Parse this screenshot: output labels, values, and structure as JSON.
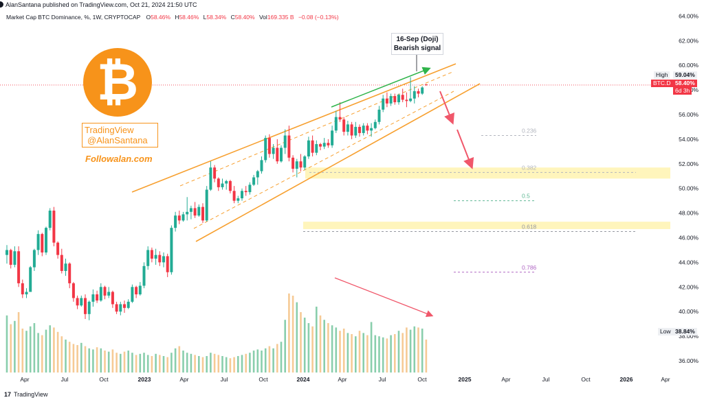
{
  "header": {
    "published": "AlanSantana published on TradingView.com, Oct 21, 2024 21:50 UTC"
  },
  "legend": {
    "symbol": "Market Cap BTC Dominance, %, 1W, CRYPTOCAP",
    "open_label": "O",
    "open": "58.46%",
    "high_label": "H",
    "high": "58.46%",
    "low_label": "L",
    "low": "58.34%",
    "close_label": "C",
    "close": "58.40%",
    "vol_label": "Vol",
    "vol": "169.335 B",
    "change": "−0.08 (−0.13%)"
  },
  "annotations": {
    "tv_line1": "TradingView",
    "tv_line2": "@AlanSantana",
    "followalan": "Followalan.com",
    "callout_line1": "16-Sep (Doji)",
    "callout_line2": "Bearish signal"
  },
  "price_labels": {
    "high_label": "High",
    "high_value": "59.04%",
    "symbol_tag": "BTC.D",
    "current_value": "58.40%",
    "countdown": "6d 3h",
    "low_label": "Low",
    "low_value": "38.84%"
  },
  "footer": {
    "logo": "17",
    "brand": "TradingView"
  },
  "colors": {
    "up": "#22ab94",
    "down": "#f23645",
    "channel": "#f7a030",
    "fib_zone": "#fff3b0",
    "arrow_green": "#2fb44a",
    "arrow_red": "#f0576a"
  },
  "chart_data": {
    "type": "candlestick",
    "title": "Market Cap BTC Dominance, %, 1W, CRYPTOCAP",
    "y_axis": {
      "ticks": [
        "36.00%",
        "38.00%",
        "40.00%",
        "42.00%",
        "44.00%",
        "46.00%",
        "48.00%",
        "50.00%",
        "52.00%",
        "54.00%",
        "56.00%",
        "58.00%",
        "60.00%",
        "62.00%",
        "64.00%"
      ],
      "ylim": [
        35.5,
        64.3
      ]
    },
    "x_axis": {
      "ticks": [
        "Apr",
        "Jul",
        "Oct",
        "2023",
        "Apr",
        "Jul",
        "Oct",
        "2024",
        "Apr",
        "Jul",
        "Oct",
        "2025",
        "Apr",
        "Jul",
        "Oct",
        "2026",
        "Apr"
      ],
      "bold": [
        "2023",
        "2024",
        "2025",
        "2026"
      ]
    },
    "fib_levels": [
      {
        "label": "0.236",
        "value": 54.3
      },
      {
        "label": "0.382",
        "value": 51.3
      },
      {
        "label": "0.5",
        "value": 49.0
      },
      {
        "label": "0.618",
        "value": 46.5
      },
      {
        "label": "0.786",
        "value": 43.2
      }
    ],
    "fib_zones": [
      [
        50.8,
        51.7
      ],
      [
        46.7,
        47.3
      ]
    ],
    "candles": [
      [
        44.6,
        45.4,
        43.9,
        45.0
      ],
      [
        45.0,
        45.1,
        43.5,
        43.8
      ],
      [
        43.8,
        45.3,
        43.6,
        44.9
      ],
      [
        44.9,
        45.3,
        42.0,
        42.3
      ],
      [
        42.3,
        42.6,
        41.1,
        41.4
      ],
      [
        41.4,
        41.9,
        41.1,
        41.6
      ],
      [
        41.6,
        43.7,
        41.6,
        43.6
      ],
      [
        43.6,
        45.1,
        43.3,
        45.0
      ],
      [
        45.0,
        46.6,
        44.6,
        46.3
      ],
      [
        46.3,
        46.4,
        44.5,
        44.8
      ],
      [
        44.8,
        46.9,
        44.6,
        46.8
      ],
      [
        46.8,
        48.4,
        46.6,
        48.2
      ],
      [
        48.2,
        48.5,
        45.3,
        45.6
      ],
      [
        45.6,
        45.7,
        44.3,
        44.6
      ],
      [
        44.6,
        45.1,
        43.1,
        43.3
      ],
      [
        43.3,
        44.3,
        42.9,
        43.9
      ],
      [
        43.9,
        44.0,
        41.9,
        42.3
      ],
      [
        42.3,
        42.4,
        40.8,
        41.1
      ],
      [
        41.1,
        41.3,
        40.2,
        40.5
      ],
      [
        40.5,
        41.3,
        40.4,
        41.1
      ],
      [
        41.1,
        41.4,
        39.4,
        39.8
      ],
      [
        39.8,
        40.9,
        39.3,
        40.8
      ],
      [
        40.8,
        41.8,
        40.4,
        41.4
      ],
      [
        41.4,
        41.7,
        40.7,
        40.9
      ],
      [
        40.9,
        42.3,
        40.8,
        42.0
      ],
      [
        42.0,
        42.1,
        41.0,
        41.3
      ],
      [
        41.3,
        42.0,
        41.1,
        41.6
      ],
      [
        41.6,
        41.7,
        40.3,
        40.6
      ],
      [
        40.6,
        40.8,
        39.8,
        40.0
      ],
      [
        40.0,
        40.8,
        39.7,
        40.6
      ],
      [
        40.6,
        40.9,
        39.9,
        40.3
      ],
      [
        40.3,
        41.0,
        40.2,
        40.8
      ],
      [
        40.8,
        42.2,
        40.7,
        42.0
      ],
      [
        42.0,
        42.1,
        41.1,
        41.4
      ],
      [
        41.4,
        42.4,
        41.3,
        42.1
      ],
      [
        42.1,
        44.0,
        41.9,
        43.7
      ],
      [
        43.7,
        45.3,
        43.4,
        45.0
      ],
      [
        45.0,
        45.2,
        44.0,
        44.3
      ],
      [
        44.3,
        45.1,
        43.8,
        44.6
      ],
      [
        44.6,
        44.9,
        43.7,
        44.0
      ],
      [
        44.0,
        44.8,
        43.6,
        44.5
      ],
      [
        44.5,
        44.7,
        42.8,
        43.2
      ],
      [
        43.2,
        47.0,
        43.0,
        46.8
      ],
      [
        46.8,
        48.1,
        46.5,
        47.8
      ],
      [
        47.8,
        48.2,
        47.1,
        47.4
      ],
      [
        47.4,
        48.1,
        47.3,
        47.9
      ],
      [
        47.9,
        49.3,
        47.4,
        48.1
      ],
      [
        48.1,
        48.6,
        47.5,
        48.4
      ],
      [
        48.4,
        48.9,
        47.6,
        47.8
      ],
      [
        47.8,
        48.7,
        47.7,
        48.5
      ],
      [
        48.5,
        48.8,
        47.2,
        47.4
      ],
      [
        47.4,
        50.2,
        47.3,
        49.9
      ],
      [
        49.9,
        52.2,
        49.8,
        51.7
      ],
      [
        51.7,
        51.9,
        50.5,
        50.8
      ],
      [
        50.8,
        50.9,
        49.8,
        50.1
      ],
      [
        50.1,
        50.8,
        49.9,
        50.4
      ],
      [
        50.4,
        50.7,
        49.9,
        50.6
      ],
      [
        50.6,
        50.7,
        49.6,
        49.8
      ],
      [
        49.8,
        50.2,
        48.8,
        49.0
      ],
      [
        49.0,
        49.4,
        48.8,
        49.2
      ],
      [
        49.2,
        50.0,
        49.0,
        49.8
      ],
      [
        49.8,
        50.2,
        49.4,
        49.7
      ],
      [
        49.7,
        50.5,
        49.5,
        50.3
      ],
      [
        50.3,
        51.1,
        50.2,
        50.9
      ],
      [
        50.9,
        51.5,
        50.3,
        51.4
      ],
      [
        51.4,
        52.6,
        51.2,
        52.3
      ],
      [
        52.3,
        54.3,
        52.1,
        54.1
      ],
      [
        54.1,
        54.4,
        52.5,
        52.8
      ],
      [
        52.8,
        53.6,
        52.4,
        53.3
      ],
      [
        53.3,
        54.0,
        52.0,
        52.2
      ],
      [
        52.2,
        53.5,
        52.1,
        53.3
      ],
      [
        53.3,
        54.8,
        52.8,
        54.3
      ],
      [
        54.3,
        55.1,
        52.2,
        52.5
      ],
      [
        52.5,
        52.7,
        51.3,
        51.6
      ],
      [
        51.6,
        52.4,
        50.9,
        52.2
      ],
      [
        52.2,
        52.8,
        51.4,
        51.7
      ],
      [
        51.7,
        52.7,
        51.5,
        52.6
      ],
      [
        52.6,
        54.2,
        52.4,
        53.9
      ],
      [
        53.9,
        54.3,
        52.6,
        52.9
      ],
      [
        52.9,
        53.9,
        52.7,
        53.6
      ],
      [
        53.6,
        53.7,
        53.1,
        53.4
      ],
      [
        53.4,
        54.1,
        53.2,
        53.7
      ],
      [
        53.7,
        54.0,
        53.3,
        53.5
      ],
      [
        53.5,
        55.1,
        53.3,
        54.7
      ],
      [
        54.7,
        56.3,
        54.5,
        55.8
      ],
      [
        55.8,
        57.0,
        55.4,
        55.6
      ],
      [
        55.6,
        55.8,
        54.3,
        54.6
      ],
      [
        54.6,
        55.5,
        54.3,
        55.2
      ],
      [
        55.2,
        55.4,
        54.0,
        54.3
      ],
      [
        54.3,
        55.4,
        54.1,
        55.0
      ],
      [
        55.0,
        55.2,
        54.2,
        54.5
      ],
      [
        54.5,
        55.3,
        54.3,
        55.1
      ],
      [
        55.1,
        55.3,
        54.4,
        54.7
      ],
      [
        54.7,
        55.3,
        54.2,
        54.9
      ],
      [
        54.9,
        55.6,
        54.8,
        55.4
      ],
      [
        55.4,
        56.7,
        55.2,
        56.4
      ],
      [
        56.4,
        57.6,
        56.2,
        57.3
      ],
      [
        57.3,
        57.8,
        56.6,
        56.9
      ],
      [
        56.9,
        57.7,
        56.7,
        57.5
      ],
      [
        57.5,
        57.7,
        56.8,
        57.0
      ],
      [
        57.0,
        57.7,
        56.8,
        57.6
      ],
      [
        57.6,
        58.1,
        57.0,
        57.2
      ],
      [
        57.2,
        57.8,
        56.6,
        57.1
      ],
      [
        57.1,
        59.04,
        57.0,
        57.3
      ],
      [
        57.3,
        58.3,
        56.9,
        57.9
      ],
      [
        57.9,
        58.1,
        57.4,
        57.7
      ],
      [
        57.7,
        58.3,
        57.6,
        58.2
      ],
      [
        58.46,
        58.46,
        58.34,
        58.4
      ]
    ],
    "volume": [
      0.52,
      0.44,
      0.47,
      0.55,
      0.4,
      0.38,
      0.42,
      0.45,
      0.36,
      0.34,
      0.39,
      0.43,
      0.41,
      0.37,
      0.33,
      0.3,
      0.28,
      0.26,
      0.25,
      0.27,
      0.24,
      0.22,
      0.21,
      0.23,
      0.22,
      0.2,
      0.19,
      0.21,
      0.18,
      0.17,
      0.19,
      0.2,
      0.18,
      0.16,
      0.17,
      0.18,
      0.16,
      0.15,
      0.17,
      0.16,
      0.15,
      0.14,
      0.18,
      0.22,
      0.24,
      0.2,
      0.18,
      0.17,
      0.16,
      0.15,
      0.14,
      0.15,
      0.18,
      0.17,
      0.16,
      0.15,
      0.14,
      0.13,
      0.14,
      0.15,
      0.16,
      0.17,
      0.18,
      0.2,
      0.21,
      0.2,
      0.22,
      0.24,
      0.22,
      0.26,
      0.28,
      0.48,
      0.72,
      0.7,
      0.64,
      0.55,
      0.5,
      0.45,
      0.42,
      0.6,
      0.52,
      0.48,
      0.45,
      0.43,
      0.41,
      0.38,
      0.4,
      0.36,
      0.35,
      0.33,
      0.38,
      0.36,
      0.34,
      0.46,
      0.34,
      0.33,
      0.32,
      0.31,
      0.34,
      0.35,
      0.38,
      0.36,
      0.41,
      0.39,
      0.42,
      0.41,
      0.4,
      0.3
    ]
  }
}
